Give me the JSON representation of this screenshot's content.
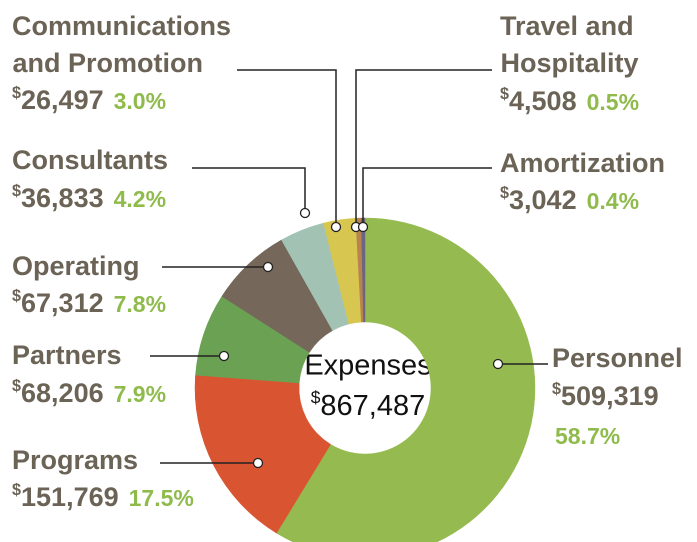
{
  "chart_data": {
    "type": "pie",
    "donut": true,
    "categories": [
      "Personnel",
      "Programs",
      "Partners",
      "Operating",
      "Consultants",
      "Communications and Promotion",
      "Travel and Hospitality",
      "Amortization"
    ],
    "values": [
      509319,
      151769,
      68206,
      67312,
      36833,
      26497,
      4508,
      3042
    ],
    "value_labels": [
      "$509,319",
      "$151,769",
      "$68,206",
      "$67,312",
      "$36,833",
      "$26,497",
      "$4,508",
      "$3,042"
    ],
    "percents": [
      58.7,
      17.5,
      7.9,
      7.8,
      4.2,
      3.0,
      0.5,
      0.4
    ],
    "percent_labels": [
      "58.7%",
      "17.5%",
      "7.9%",
      "7.8%",
      "4.2%",
      "3.0%",
      "0.5%",
      "0.4%"
    ],
    "colors": [
      "#95bb50",
      "#d95532",
      "#6aa152",
      "#75675a",
      "#a2c3b4",
      "#d7c64f",
      "#b9834e",
      "#6c6585"
    ],
    "center_label": "Expenses",
    "total": 867487,
    "total_label": "$867,487"
  }
}
